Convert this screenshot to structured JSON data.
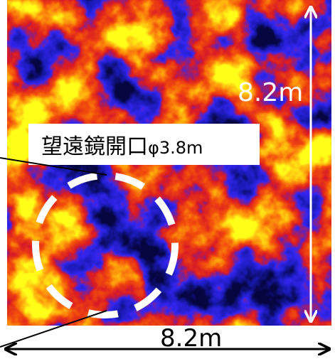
{
  "aperture_label": "望遠鏡開口",
  "aperture_size": "φ3.8m",
  "height_label": "8.2m",
  "width_label": "8.2m"
}
